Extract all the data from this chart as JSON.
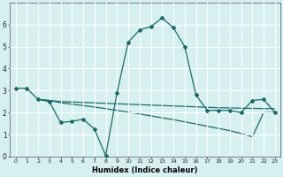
{
  "line1_x": [
    0,
    1,
    2,
    3,
    4,
    5,
    6,
    7,
    8,
    9,
    10,
    11,
    12,
    13,
    14,
    15,
    16,
    17,
    18,
    19,
    20,
    21,
    22,
    23
  ],
  "line1_y": [
    3.1,
    3.1,
    2.6,
    2.5,
    1.55,
    1.6,
    1.7,
    1.25,
    0.05,
    2.9,
    5.2,
    5.75,
    5.9,
    6.3,
    5.85,
    5.0,
    2.8,
    2.1,
    2.1,
    2.1,
    2.0,
    2.55,
    2.6,
    2.0
  ],
  "line2_x": [
    2,
    3,
    4,
    5,
    6,
    7,
    8,
    9,
    10,
    11,
    12,
    13,
    14,
    15,
    16,
    17,
    18,
    19,
    20,
    21,
    22,
    23
  ],
  "line2_y": [
    2.6,
    2.55,
    2.5,
    2.48,
    2.46,
    2.44,
    2.42,
    2.4,
    2.38,
    2.36,
    2.34,
    2.32,
    2.3,
    2.28,
    2.26,
    2.24,
    2.22,
    2.21,
    2.2,
    2.19,
    2.18,
    2.18
  ],
  "line3_x": [
    2,
    3,
    4,
    5,
    6,
    7,
    8,
    9,
    10,
    11,
    12,
    13,
    14,
    15,
    16,
    17,
    18,
    19,
    20,
    21,
    22,
    23
  ],
  "line3_y": [
    2.6,
    2.55,
    2.45,
    2.38,
    2.32,
    2.25,
    2.18,
    2.1,
    2.02,
    1.94,
    1.85,
    1.76,
    1.68,
    1.58,
    1.48,
    1.38,
    1.28,
    1.18,
    1.05,
    0.9,
    2.0,
    2.0
  ],
  "color": "#1a6b6b",
  "bg_color": "#d6f0f0",
  "grid_color": "#ffffff",
  "xlabel": "Humidex (Indice chaleur)",
  "ylim": [
    0,
    7
  ],
  "xlim": [
    -0.5,
    23.5
  ],
  "yticks": [
    0,
    1,
    2,
    3,
    4,
    5,
    6
  ],
  "xticks": [
    0,
    1,
    2,
    3,
    4,
    5,
    6,
    7,
    8,
    9,
    10,
    11,
    12,
    13,
    14,
    15,
    16,
    17,
    18,
    19,
    20,
    21,
    22,
    23
  ]
}
